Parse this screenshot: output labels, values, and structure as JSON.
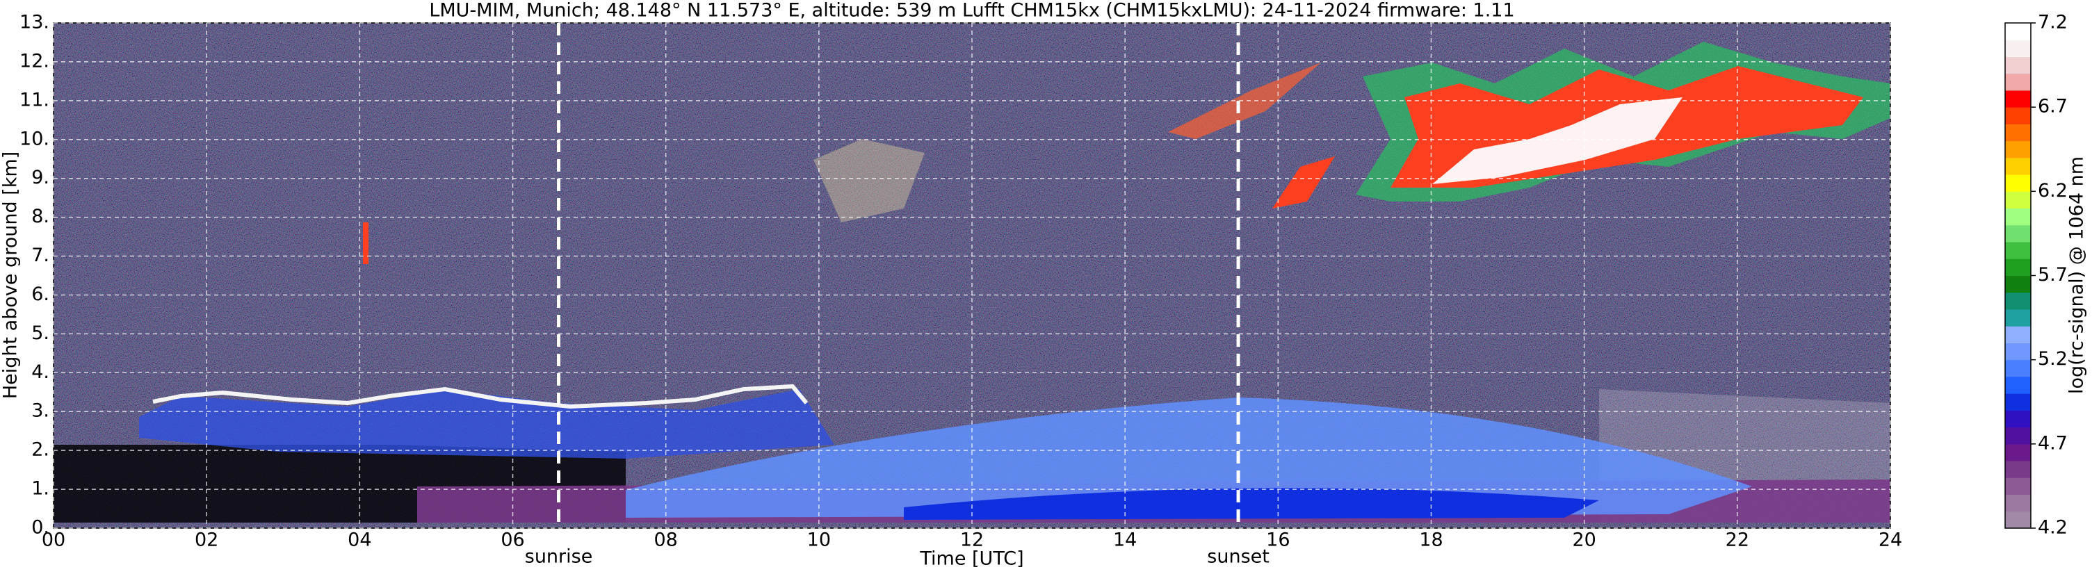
{
  "chart_data": {
    "type": "heatmap",
    "title": "LMU-MIM, Munich; 48.148° N 11.573° E, altitude: 539 m    Lufft CHM15kx (CHM15kxLMU): 24-11-2024    firmware: 1.11",
    "x_label": "Time [UTC]",
    "y_label": "Height above ground [km]",
    "xlim": [
      0,
      24
    ],
    "xticks": [
      {
        "value": 0,
        "label": "00"
      },
      {
        "value": 2,
        "label": "02"
      },
      {
        "value": 4,
        "label": "04"
      },
      {
        "value": 6,
        "label": "06"
      },
      {
        "value": 8,
        "label": "08"
      },
      10,
      12,
      14,
      16,
      18,
      20,
      22,
      24
    ],
    "ylim": [
      0,
      13
    ],
    "yticks": [
      {
        "value": 0,
        "label": "0."
      },
      {
        "value": 1,
        "label": "1."
      },
      {
        "value": 2,
        "label": "2."
      },
      {
        "value": 3,
        "label": "3."
      },
      {
        "value": 4,
        "label": "4."
      },
      {
        "value": 5,
        "label": "5."
      },
      {
        "value": 6,
        "label": "6."
      },
      {
        "value": 7,
        "label": "7."
      },
      {
        "value": 8,
        "label": "8."
      },
      {
        "value": 9,
        "label": "9."
      },
      {
        "value": 10,
        "label": "10."
      },
      {
        "value": 11,
        "label": "11."
      },
      {
        "value": 12,
        "label": "12."
      },
      {
        "value": 13,
        "label": "13."
      }
    ],
    "grid": true,
    "annotations": [
      {
        "label": "sunrise",
        "x": 6.6
      },
      {
        "label": "sunset",
        "x": 15.48
      }
    ],
    "colorbar": {
      "label": "log(rc-signal) @ 1064 nm",
      "lim": [
        4.2,
        7.2
      ],
      "ticks": [
        4.2,
        4.7,
        5.2,
        5.7,
        6.2,
        6.7,
        7.2
      ],
      "colors": [
        "#a08aa8",
        "#9a78a0",
        "#8e5a96",
        "#7a3a8a",
        "#6a1a8a",
        "#5010a0",
        "#3010c0",
        "#1030e0",
        "#2060ff",
        "#4a80ff",
        "#7098ff",
        "#90b0ff",
        "#20a0a0",
        "#109070",
        "#108010",
        "#20a020",
        "#40c040",
        "#70e070",
        "#a0ff80",
        "#d0ff40",
        "#ffff00",
        "#ffd000",
        "#ffa000",
        "#ff7000",
        "#ff4000",
        "#ff0000",
        "#f0a8a8",
        "#f0d0d0",
        "#f8f0f0",
        "#ffffff"
      ]
    }
  }
}
